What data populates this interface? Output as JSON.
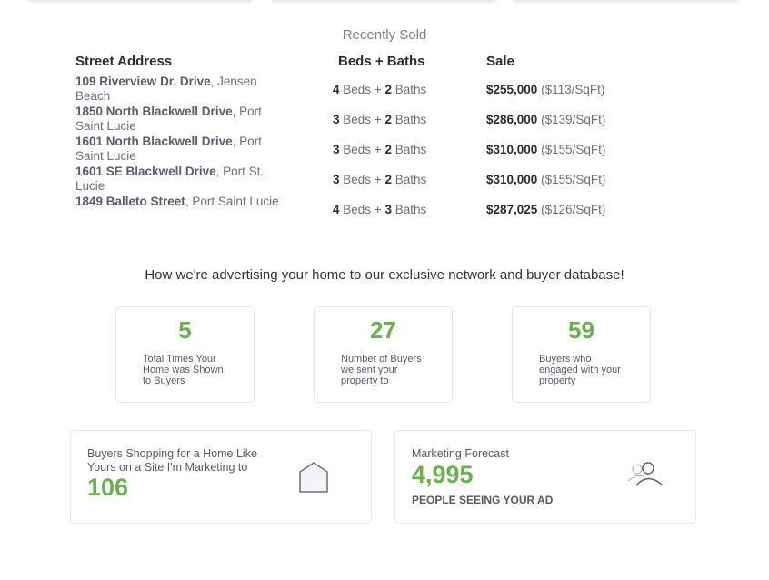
{
  "recently_sold": {
    "title": "Recently Sold",
    "headers": [
      "Street Address",
      "Beds + Baths",
      "Sale"
    ],
    "rows": [
      {
        "street": "109 Riverview Dr. Drive",
        "city": ", Jensen Beach",
        "beds": "4",
        "baths": "2",
        "price": "$255,000",
        "per_sqft": "($113/SqFt)"
      },
      {
        "street": "1850 North Blackwell Drive",
        "city": ", Port Saint Lucie",
        "beds": "3",
        "baths": "2",
        "price": "$286,000",
        "per_sqft": "($139/SqFt)"
      },
      {
        "street": "1601 North Blackwell Drive",
        "city": ", Port Saint Lucie",
        "beds": "3",
        "baths": "2",
        "price": "$310,000",
        "per_sqft": "($155/SqFt)"
      },
      {
        "street": "1601 SE Blackwell Drive",
        "city": ", Port St. Lucie",
        "beds": "3",
        "baths": "2",
        "price": "$310,000",
        "per_sqft": "($155/SqFt)"
      },
      {
        "street": "1849 Balleto Street",
        "city": ", Port Saint Lucie",
        "beds": "4",
        "baths": "3",
        "price": "$287,025",
        "per_sqft": "($126/SqFt)"
      }
    ],
    "beds_label": " Beds + ",
    "baths_label": " Baths"
  },
  "advertising": {
    "heading": "How we're advertising your home to our exclusive network and buyer database!",
    "stats": [
      {
        "value": "5",
        "label": "Total Times Your Home was Shown to Buyers"
      },
      {
        "value": "27",
        "label": "Number of Buyers we sent your property to"
      },
      {
        "value": "59",
        "label": "Buyers who engaged with your property"
      }
    ]
  },
  "shopping": {
    "caption": "Buyers Shopping for a Home Like Yours on a Site I'm Marketing to",
    "value": "106",
    "icon": "house-icon"
  },
  "forecast": {
    "caption": "Marketing Forecast",
    "value": "4,995",
    "sub": "PEOPLE SEEING YOUR AD",
    "icon": "users-icon"
  },
  "colors": {
    "accent": "#6ab04c"
  }
}
